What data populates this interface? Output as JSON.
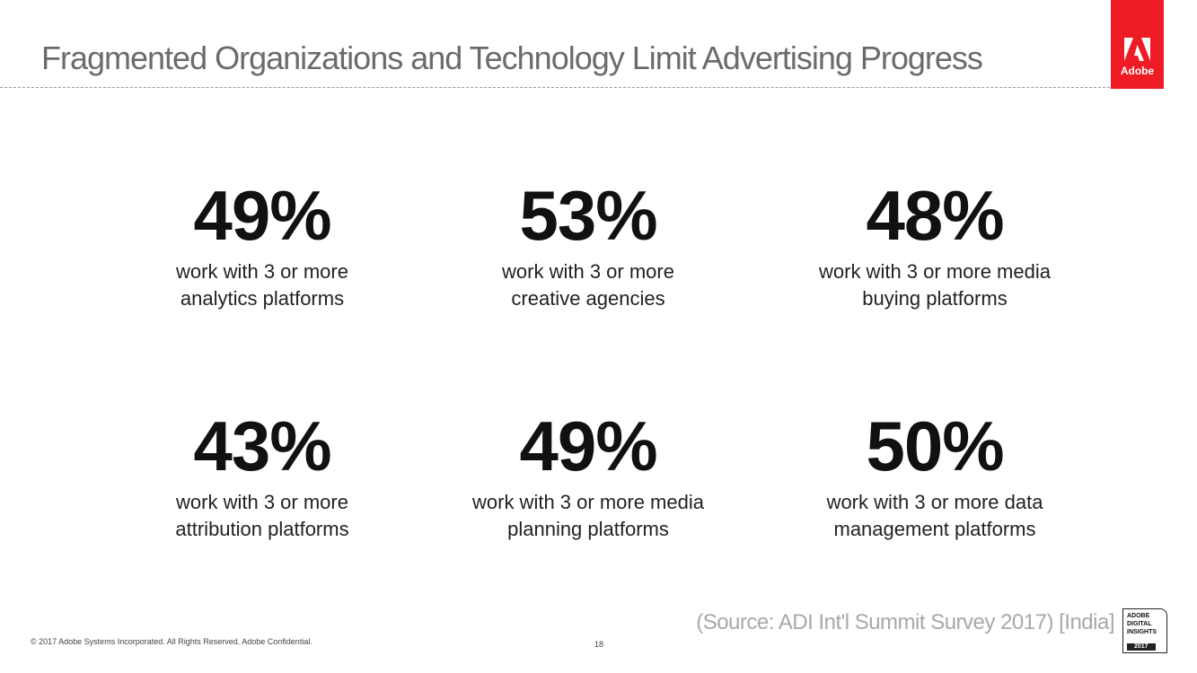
{
  "title": "Fragmented Organizations and Technology Limit Advertising Progress",
  "logo": {
    "text": "Adobe",
    "color": "#ed1c24"
  },
  "stats": [
    {
      "value": "49%",
      "line1": "work with 3 or more",
      "line2": "analytics platforms"
    },
    {
      "value": "53%",
      "line1": "work with 3 or more",
      "line2": "creative agencies"
    },
    {
      "value": "48%",
      "line1": "work with 3 or more media",
      "line2": "buying platforms"
    },
    {
      "value": "43%",
      "line1": "work with 3 or more",
      "line2": "attribution platforms"
    },
    {
      "value": "49%",
      "line1": "work with 3 or more media",
      "line2": "planning platforms"
    },
    {
      "value": "50%",
      "line1": "work with 3 or more data",
      "line2": "management platforms"
    }
  ],
  "footer": "© 2017 Adobe Systems Incorporated.  All Rights Reserved.  Adobe Confidential.",
  "page_number": "18",
  "source": "(Source: ADI Int'l Summit Survey 2017) [India]",
  "badge": {
    "l1": "ADOBE",
    "l2": "DIGITAL",
    "l3": "INSIGHTS",
    "year": "2017"
  }
}
